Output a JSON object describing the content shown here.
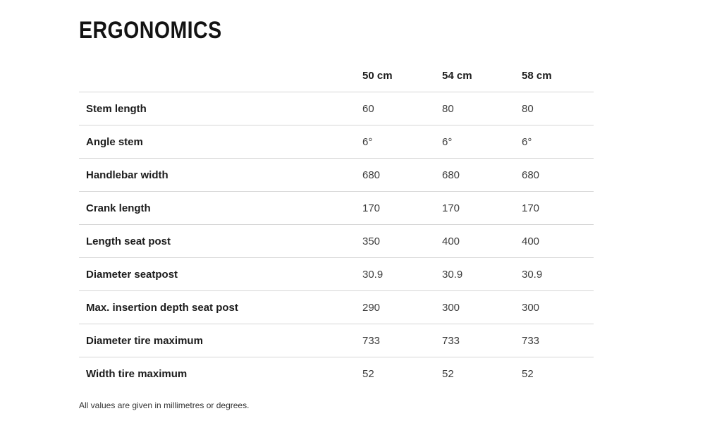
{
  "page": {
    "title": "ERGONOMICS",
    "footnote": "All values are given in millimetres or degrees."
  },
  "table": {
    "columns": [
      "50 cm",
      "54 cm",
      "58 cm"
    ],
    "rows": [
      {
        "label": "Stem length",
        "values": [
          "60",
          "80",
          "80"
        ]
      },
      {
        "label": "Angle stem",
        "values": [
          "6°",
          "6°",
          "6°"
        ]
      },
      {
        "label": "Handlebar width",
        "values": [
          "680",
          "680",
          "680"
        ]
      },
      {
        "label": "Crank length",
        "values": [
          "170",
          "170",
          "170"
        ]
      },
      {
        "label": "Length seat post",
        "values": [
          "350",
          "400",
          "400"
        ]
      },
      {
        "label": "Diameter seatpost",
        "values": [
          "30.9",
          "30.9",
          "30.9"
        ]
      },
      {
        "label": "Max. insertion depth seat post",
        "values": [
          "290",
          "300",
          "300"
        ]
      },
      {
        "label": "Diameter tire maximum",
        "values": [
          "733",
          "733",
          "733"
        ]
      },
      {
        "label": "Width tire maximum",
        "values": [
          "52",
          "52",
          "52"
        ]
      }
    ]
  },
  "colors": {
    "row_divider": "#d6d6d6",
    "heading_text": "#1c1c1c",
    "value_text": "#3d3d3d",
    "background": "#ffffff"
  }
}
